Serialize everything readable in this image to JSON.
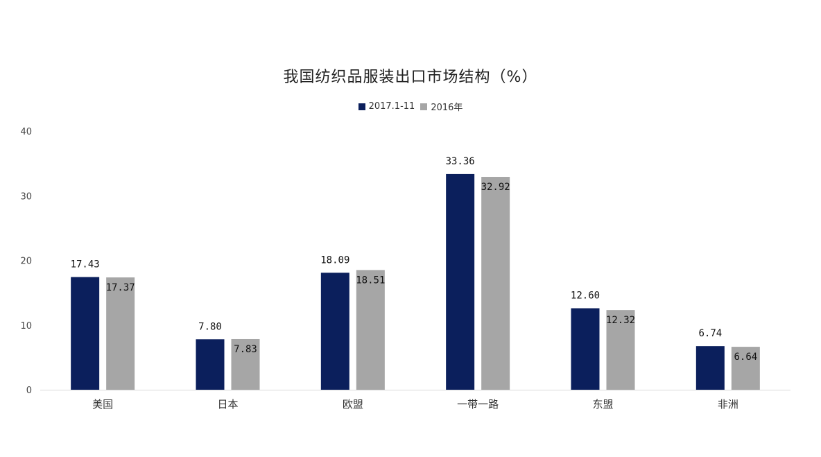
{
  "chart_data": {
    "type": "bar",
    "title": "我国纺织品服装出口市场结构（%）",
    "xlabel": "",
    "ylabel": "",
    "ylim": [
      0,
      40
    ],
    "yticks": [
      "0",
      "10",
      "20",
      "30",
      "40"
    ],
    "grid": false,
    "legend_position": "top-center",
    "categories": [
      "美国",
      "日本",
      "欧盟",
      "一带一路",
      "东盟",
      "非洲"
    ],
    "series": [
      {
        "name": "2017.1-11",
        "color": "#0b1f5c",
        "values": [
          17.43,
          7.8,
          18.09,
          33.36,
          12.6,
          6.74
        ],
        "labels": [
          "17.43",
          "7.80",
          "18.09",
          "33.36",
          "12.60",
          "6.74"
        ]
      },
      {
        "name": "2016年",
        "color": "#a6a6a6",
        "values": [
          17.37,
          7.83,
          18.51,
          32.92,
          12.32,
          6.64
        ],
        "labels": [
          "17.37",
          "7.83",
          "18.51",
          "32.92",
          "12.32",
          "6.64"
        ]
      }
    ]
  }
}
